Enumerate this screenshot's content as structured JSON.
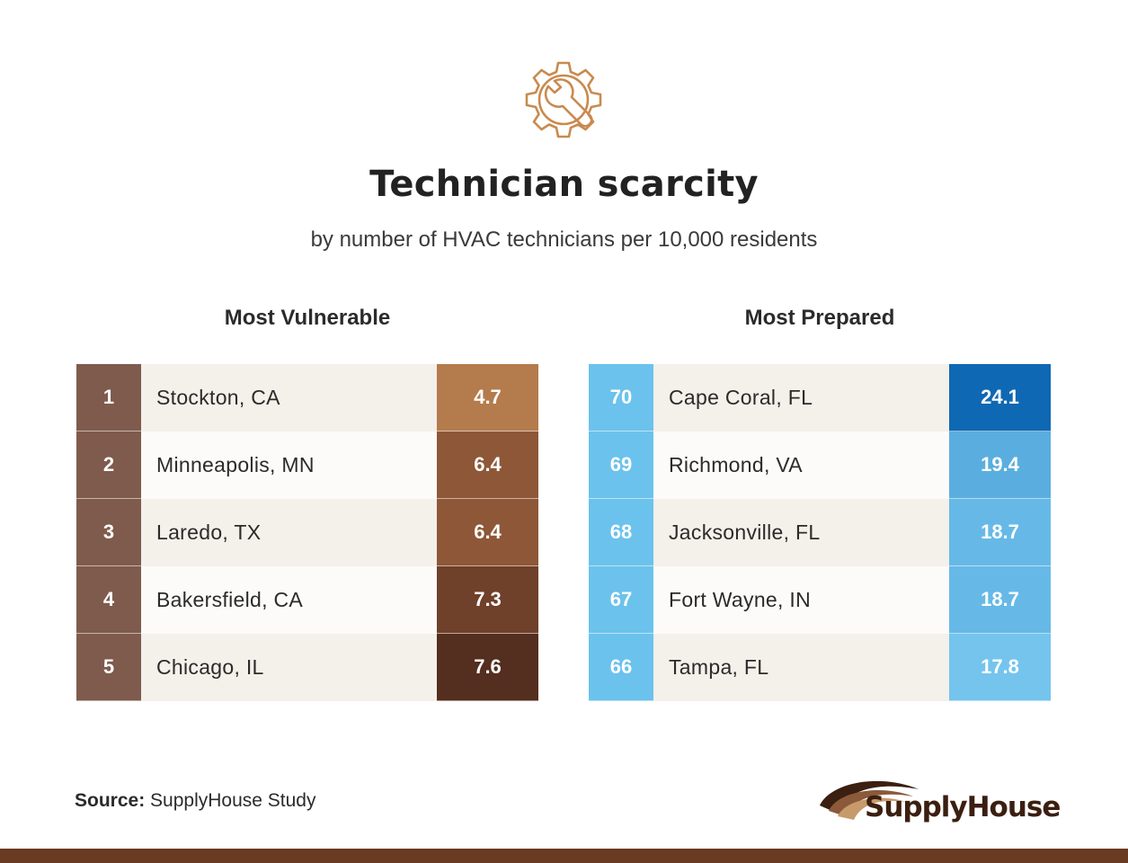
{
  "title": "Technician scarcity",
  "subtitle": "by number of HVAC technicians per 10,000 residents",
  "icon": "gear-wrench-icon",
  "colors": {
    "icon": "#c98a4f",
    "footer": "#6a3a22",
    "vulnerable_rank": "#7f5b4d",
    "prepared_rank": "#6bc2ec"
  },
  "vulnerable": {
    "title": "Most Vulnerable",
    "rows": [
      {
        "rank": "1",
        "city": "Stockton, CA",
        "value": "4.7",
        "color": "#b47b4c"
      },
      {
        "rank": "2",
        "city": "Minneapolis, MN",
        "value": "6.4",
        "color": "#8e5737"
      },
      {
        "rank": "3",
        "city": "Laredo, TX",
        "value": "6.4",
        "color": "#8e5737"
      },
      {
        "rank": "4",
        "city": "Bakersfield, CA",
        "value": "7.3",
        "color": "#6f402a"
      },
      {
        "rank": "5",
        "city": "Chicago, IL",
        "value": "7.6",
        "color": "#542e1f"
      }
    ]
  },
  "prepared": {
    "title": "Most Prepared",
    "rows": [
      {
        "rank": "70",
        "city": "Cape Coral, FL",
        "value": "24.1",
        "color": "#0f68b3"
      },
      {
        "rank": "69",
        "city": "Richmond, VA",
        "value": "19.4",
        "color": "#5aaedf"
      },
      {
        "rank": "68",
        "city": "Jacksonville, FL",
        "value": "18.7",
        "color": "#66b9e7"
      },
      {
        "rank": "67",
        "city": "Fort Wayne, IN",
        "value": "18.7",
        "color": "#66b9e7"
      },
      {
        "rank": "66",
        "city": "Tampa, FL",
        "value": "17.8",
        "color": "#74c4ee"
      }
    ]
  },
  "source": {
    "label": "Source:",
    "text": "SupplyHouse Study"
  },
  "logo": {
    "text": "SupplyHouse"
  }
}
